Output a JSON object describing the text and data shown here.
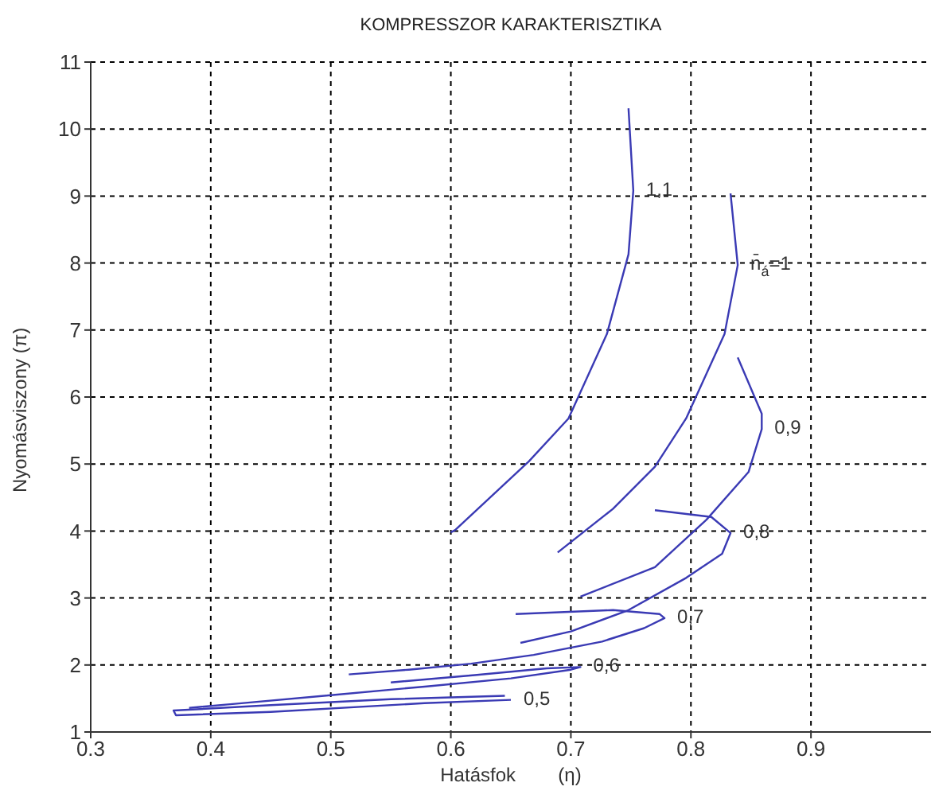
{
  "chart_data": {
    "type": "line",
    "title": "KOMPRESSZOR KARAKTERISZTIKA",
    "xlabel": "Hatásfok        (η)",
    "ylabel": "Nyomásviszony    (π)",
    "xlim": [
      0.3,
      1
    ],
    "xticks": [
      0.3,
      0.4,
      0.5,
      0.6,
      0.7,
      0.8,
      0.9
    ],
    "ylim": [
      1,
      11
    ],
    "yticks": [
      1,
      2,
      3,
      4,
      5,
      6,
      7,
      8,
      9,
      10,
      11
    ],
    "grid": true,
    "legend": false,
    "marker": "none",
    "line_style": "solid",
    "series": [
      {
        "name": "1,1",
        "color": "#3a3ab4",
        "x": [
          0.6,
          0.604,
          0.665,
          0.698,
          0.73,
          0.748,
          0.752,
          0.748
        ],
        "values": [
          3.98,
          4.02,
          5.04,
          5.68,
          6.94,
          8.13,
          9.08,
          10.31
        ]
      },
      {
        "name": "n̄$_{á}$=1",
        "color": "#3a3ab4",
        "x": [
          0.689,
          0.735,
          0.77,
          0.796,
          0.828,
          0.839,
          0.833
        ],
        "values": [
          3.68,
          4.33,
          4.96,
          5.68,
          6.94,
          7.97,
          9.04
        ]
      },
      {
        "name": "0,9",
        "color": "#3a3ab4",
        "x": [
          0.708,
          0.77,
          0.813,
          0.848,
          0.859,
          0.859,
          0.839
        ],
        "values": [
          3.02,
          3.46,
          4.17,
          4.88,
          5.52,
          5.75,
          6.59
        ]
      },
      {
        "name": "0,8",
        "color": "#3a3ab4",
        "x": [
          0.77,
          0.817,
          0.833,
          0.826,
          0.796,
          0.748,
          0.7,
          0.658
        ],
        "values": [
          4.31,
          4.21,
          3.97,
          3.66,
          3.3,
          2.82,
          2.5,
          2.33
        ]
      },
      {
        "name": "0,7",
        "color": "#3a3ab4",
        "x": [
          0.654,
          0.735,
          0.774,
          0.778,
          0.761,
          0.726,
          0.669,
          0.617,
          0.565,
          0.515
        ],
        "values": [
          2.76,
          2.82,
          2.76,
          2.7,
          2.55,
          2.35,
          2.15,
          2.02,
          1.93,
          1.86
        ]
      },
      {
        "name": "0,6",
        "color": "#3a3ab4",
        "x": [
          0.55,
          0.62,
          0.68,
          0.708,
          0.7,
          0.65,
          0.58,
          0.5,
          0.42,
          0.382
        ],
        "values": [
          1.74,
          1.85,
          1.95,
          1.97,
          1.93,
          1.8,
          1.68,
          1.55,
          1.42,
          1.36
        ]
      },
      {
        "name": "0,5",
        "color": "#3a3ab4",
        "x": [
          0.645,
          0.55,
          0.45,
          0.369,
          0.371,
          0.45,
          0.578,
          0.65
        ],
        "values": [
          1.54,
          1.49,
          1.4,
          1.32,
          1.25,
          1.3,
          1.43,
          1.48
        ]
      }
    ]
  }
}
